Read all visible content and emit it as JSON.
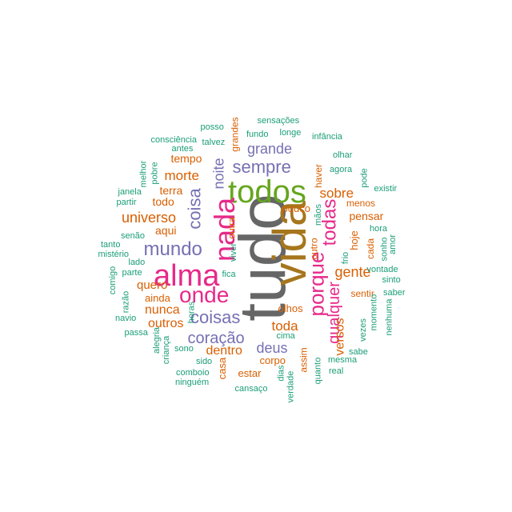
{
  "palette": {
    "teal": "#1b9e77",
    "orange": "#d95f02",
    "purple": "#7570b3",
    "magenta": "#e7298a",
    "green": "#66a61e",
    "brown": "#a6761d",
    "gray": "#666666"
  },
  "words": [
    {
      "text": "tudo",
      "color": "gray",
      "rot": -90
    },
    {
      "text": "vida",
      "color": "brown",
      "rot": -90
    },
    {
      "text": "todos",
      "color": "green",
      "rot": 0
    },
    {
      "text": "alma",
      "color": "magenta",
      "rot": 0
    },
    {
      "text": "nada",
      "color": "magenta",
      "rot": -90
    },
    {
      "text": "onde",
      "color": "magenta",
      "rot": 0
    },
    {
      "text": "porque",
      "color": "magenta",
      "rot": -90
    },
    {
      "text": "todas",
      "color": "magenta",
      "rot": -90
    },
    {
      "text": "mundo",
      "color": "purple",
      "rot": 0
    },
    {
      "text": "coisa",
      "color": "purple",
      "rot": -90
    },
    {
      "text": "coisas",
      "color": "purple",
      "rot": 0
    },
    {
      "text": "sempre",
      "color": "purple",
      "rot": 0
    },
    {
      "text": "coração",
      "color": "purple",
      "rot": 0
    },
    {
      "text": "deus",
      "color": "purple",
      "rot": 0
    },
    {
      "text": "grande",
      "color": "purple",
      "rot": 0
    },
    {
      "text": "noite",
      "color": "purple",
      "rot": -90
    },
    {
      "text": "qualquer",
      "color": "magenta",
      "rot": -90
    },
    {
      "text": "gente",
      "color": "orange",
      "rot": 0
    },
    {
      "text": "universo",
      "color": "orange",
      "rot": 0
    },
    {
      "text": "morte",
      "color": "orange",
      "rot": 0
    },
    {
      "text": "sobre",
      "color": "orange",
      "rot": 0
    },
    {
      "text": "toda",
      "color": "orange",
      "rot": 0
    },
    {
      "text": "nunca",
      "color": "orange",
      "rot": 0
    },
    {
      "text": "dentro",
      "color": "orange",
      "rot": 0
    },
    {
      "text": "outros",
      "color": "orange",
      "rot": 0
    },
    {
      "text": "quero",
      "color": "orange",
      "rot": 0
    },
    {
      "text": "versos",
      "color": "orange",
      "rot": -90
    },
    {
      "text": "pensar",
      "color": "orange",
      "rot": 0
    },
    {
      "text": "todo",
      "color": "orange",
      "rot": 0
    },
    {
      "text": "aqui",
      "color": "orange",
      "rot": 0
    },
    {
      "text": "terra",
      "color": "orange",
      "rot": 0
    },
    {
      "text": "tempo",
      "color": "orange",
      "rot": 0
    },
    {
      "text": "hoje",
      "color": "orange",
      "rot": -90
    },
    {
      "text": "outra",
      "color": "orange",
      "rot": -90
    },
    {
      "text": "pouco",
      "color": "orange",
      "rot": 0
    },
    {
      "text": "haver",
      "color": "orange",
      "rot": -90
    },
    {
      "text": "menos",
      "color": "orange",
      "rot": 0
    },
    {
      "text": "ainda",
      "color": "orange",
      "rot": 0
    },
    {
      "text": "olhos",
      "color": "orange",
      "rot": 0
    },
    {
      "text": "corpo",
      "color": "orange",
      "rot": 0
    },
    {
      "text": "estar",
      "color": "orange",
      "rot": 0
    },
    {
      "text": "casa",
      "color": "orange",
      "rot": -90
    },
    {
      "text": "assim",
      "color": "orange",
      "rot": -90
    },
    {
      "text": "sentir",
      "color": "orange",
      "rot": 0
    },
    {
      "text": "cada",
      "color": "orange",
      "rot": -90
    },
    {
      "text": "outro",
      "color": "orange",
      "rot": -90
    },
    {
      "text": "grandes",
      "color": "orange",
      "rot": -90
    },
    {
      "text": "sensações",
      "color": "teal",
      "rot": 0
    },
    {
      "text": "posso",
      "color": "teal",
      "rot": 0
    },
    {
      "text": "fundo",
      "color": "teal",
      "rot": 0
    },
    {
      "text": "longe",
      "color": "teal",
      "rot": 0
    },
    {
      "text": "infância",
      "color": "teal",
      "rot": 0
    },
    {
      "text": "consciência",
      "color": "teal",
      "rot": 0
    },
    {
      "text": "talvez",
      "color": "teal",
      "rot": 0
    },
    {
      "text": "antes",
      "color": "teal",
      "rot": 0
    },
    {
      "text": "olhar",
      "color": "teal",
      "rot": 0
    },
    {
      "text": "melhor",
      "color": "teal",
      "rot": -90
    },
    {
      "text": "pobre",
      "color": "teal",
      "rot": -90
    },
    {
      "text": "agora",
      "color": "teal",
      "rot": 0
    },
    {
      "text": "pode",
      "color": "teal",
      "rot": -90
    },
    {
      "text": "existir",
      "color": "teal",
      "rot": 0
    },
    {
      "text": "janela",
      "color": "teal",
      "rot": 0
    },
    {
      "text": "partir",
      "color": "teal",
      "rot": 0
    },
    {
      "text": "mãos",
      "color": "teal",
      "rot": -90
    },
    {
      "text": "hora",
      "color": "teal",
      "rot": 0
    },
    {
      "text": "senão",
      "color": "teal",
      "rot": 0
    },
    {
      "text": "tanto",
      "color": "teal",
      "rot": 0
    },
    {
      "text": "mistério",
      "color": "teal",
      "rot": 0
    },
    {
      "text": "sonho",
      "color": "teal",
      "rot": -90
    },
    {
      "text": "amor",
      "color": "teal",
      "rot": -90
    },
    {
      "text": "vontade",
      "color": "teal",
      "rot": 0
    },
    {
      "text": "lado",
      "color": "teal",
      "rot": 0
    },
    {
      "text": "viver",
      "color": "teal",
      "rot": -90
    },
    {
      "text": "frio",
      "color": "teal",
      "rot": -90
    },
    {
      "text": "comigo",
      "color": "teal",
      "rot": -90
    },
    {
      "text": "parte",
      "color": "teal",
      "rot": 0
    },
    {
      "text": "fica",
      "color": "teal",
      "rot": 0
    },
    {
      "text": "sinto",
      "color": "teal",
      "rot": 0
    },
    {
      "text": "razão",
      "color": "teal",
      "rot": -90
    },
    {
      "text": "saber",
      "color": "teal",
      "rot": 0
    },
    {
      "text": "navio",
      "color": "teal",
      "rot": 0
    },
    {
      "text": "horas",
      "color": "teal",
      "rot": -90
    },
    {
      "text": "momento",
      "color": "teal",
      "rot": -90
    },
    {
      "text": "passa",
      "color": "teal",
      "rot": 0
    },
    {
      "text": "vezes",
      "color": "teal",
      "rot": -90
    },
    {
      "text": "nenhuma",
      "color": "teal",
      "rot": -90
    },
    {
      "text": "alegria",
      "color": "teal",
      "rot": -90
    },
    {
      "text": "cima",
      "color": "teal",
      "rot": 0
    },
    {
      "text": "sono",
      "color": "teal",
      "rot": 0
    },
    {
      "text": "criança",
      "color": "teal",
      "rot": -90
    },
    {
      "text": "sabe",
      "color": "teal",
      "rot": 0
    },
    {
      "text": "sido",
      "color": "teal",
      "rot": 0
    },
    {
      "text": "mesma",
      "color": "teal",
      "rot": 0
    },
    {
      "text": "quanto",
      "color": "teal",
      "rot": -90
    },
    {
      "text": "comboio",
      "color": "teal",
      "rot": 0
    },
    {
      "text": "dias",
      "color": "teal",
      "rot": -90
    },
    {
      "text": "real",
      "color": "teal",
      "rot": 0
    },
    {
      "text": "ninguém",
      "color": "teal",
      "rot": 0
    },
    {
      "text": "verdade",
      "color": "teal",
      "rot": -90
    },
    {
      "text": "cansaço",
      "color": "teal",
      "rot": 0
    }
  ]
}
